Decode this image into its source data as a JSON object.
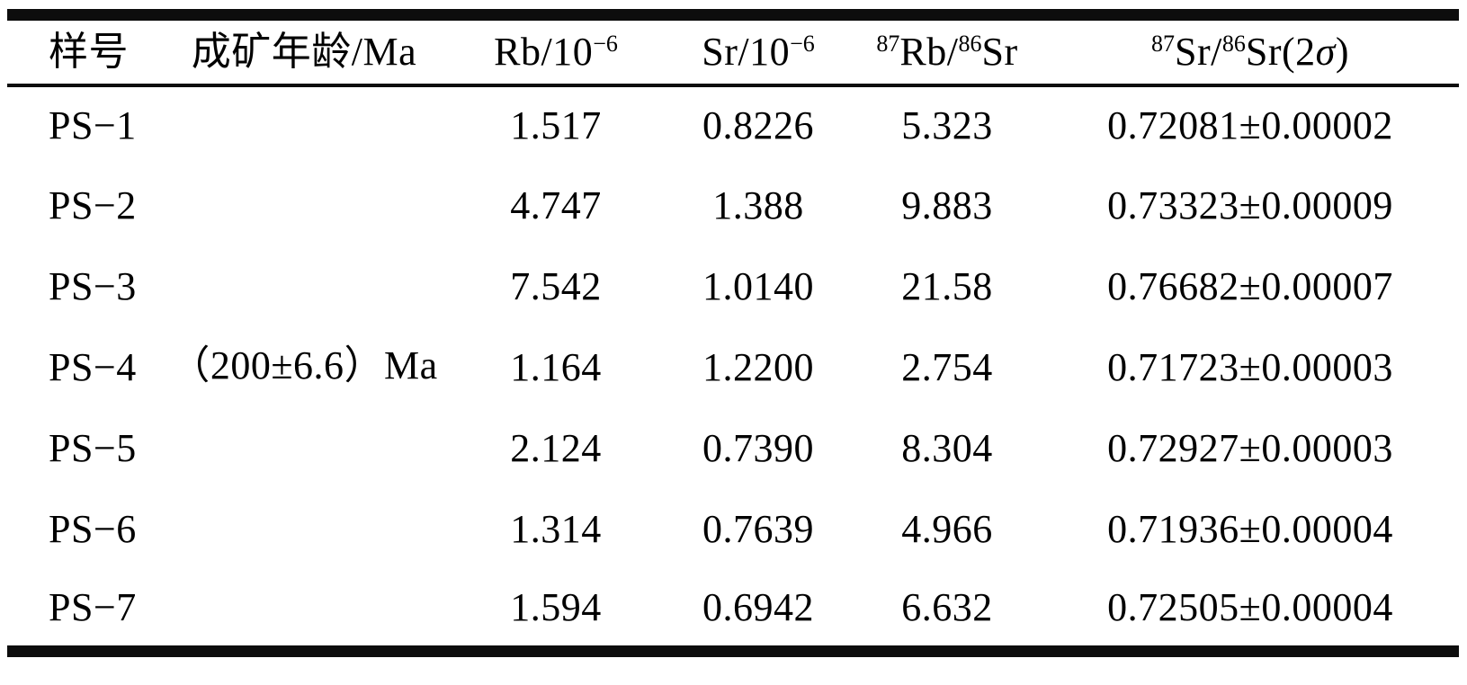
{
  "page": {
    "background_color": "#ffffff",
    "text_color": "#000000",
    "rule_color": "#0d0d0d"
  },
  "table": {
    "columns": [
      {
        "key": "sample",
        "align": "left",
        "label_parts": [
          {
            "t": "样号"
          }
        ]
      },
      {
        "key": "age",
        "align": "center",
        "label_parts": [
          {
            "t": "成矿年龄/Ma"
          }
        ]
      },
      {
        "key": "rb",
        "align": "center",
        "label_parts": [
          {
            "t": "Rb/10"
          },
          {
            "t": "−6",
            "sup": true
          }
        ]
      },
      {
        "key": "sr",
        "align": "center",
        "label_parts": [
          {
            "t": "Sr/10"
          },
          {
            "t": "−6",
            "sup": true
          }
        ]
      },
      {
        "key": "rb87sr86",
        "align": "center",
        "label_parts": [
          {
            "t": "87",
            "sup": true
          },
          {
            "t": "Rb/"
          },
          {
            "t": "86",
            "sup": true
          },
          {
            "t": "Sr"
          }
        ]
      },
      {
        "key": "sr87sr86",
        "align": "center",
        "label_parts": [
          {
            "t": "87",
            "sup": true
          },
          {
            "t": "Sr/"
          },
          {
            "t": "86",
            "sup": true
          },
          {
            "t": "Sr(2"
          },
          {
            "t": "σ",
            "italic": true
          },
          {
            "t": ")"
          }
        ]
      }
    ],
    "age_value": "（200±6.6）Ma",
    "age_rowspan": 7,
    "rows": [
      {
        "sample": "PS−1",
        "rb": "1.517",
        "sr": "0.8226",
        "rb87sr86": "5.323",
        "sr87sr86": "0.72081±0.00002"
      },
      {
        "sample": "PS−2",
        "rb": "4.747",
        "sr": "1.388",
        "rb87sr86": "9.883",
        "sr87sr86": "0.73323±0.00009"
      },
      {
        "sample": "PS−3",
        "rb": "7.542",
        "sr": "1.0140",
        "rb87sr86": "21.58",
        "sr87sr86": "0.76682±0.00007"
      },
      {
        "sample": "PS−4",
        "rb": "1.164",
        "sr": "1.2200",
        "rb87sr86": "2.754",
        "sr87sr86": "0.71723±0.00003"
      },
      {
        "sample": "PS−5",
        "rb": "2.124",
        "sr": "0.7390",
        "rb87sr86": "8.304",
        "sr87sr86": "0.72927±0.00003"
      },
      {
        "sample": "PS−6",
        "rb": "1.314",
        "sr": "0.7639",
        "rb87sr86": "4.966",
        "sr87sr86": "0.71936±0.00004"
      },
      {
        "sample": "PS−7",
        "rb": "1.594",
        "sr": "0.6942",
        "rb87sr86": "6.632",
        "sr87sr86": "0.72505±0.00004"
      }
    ]
  }
}
